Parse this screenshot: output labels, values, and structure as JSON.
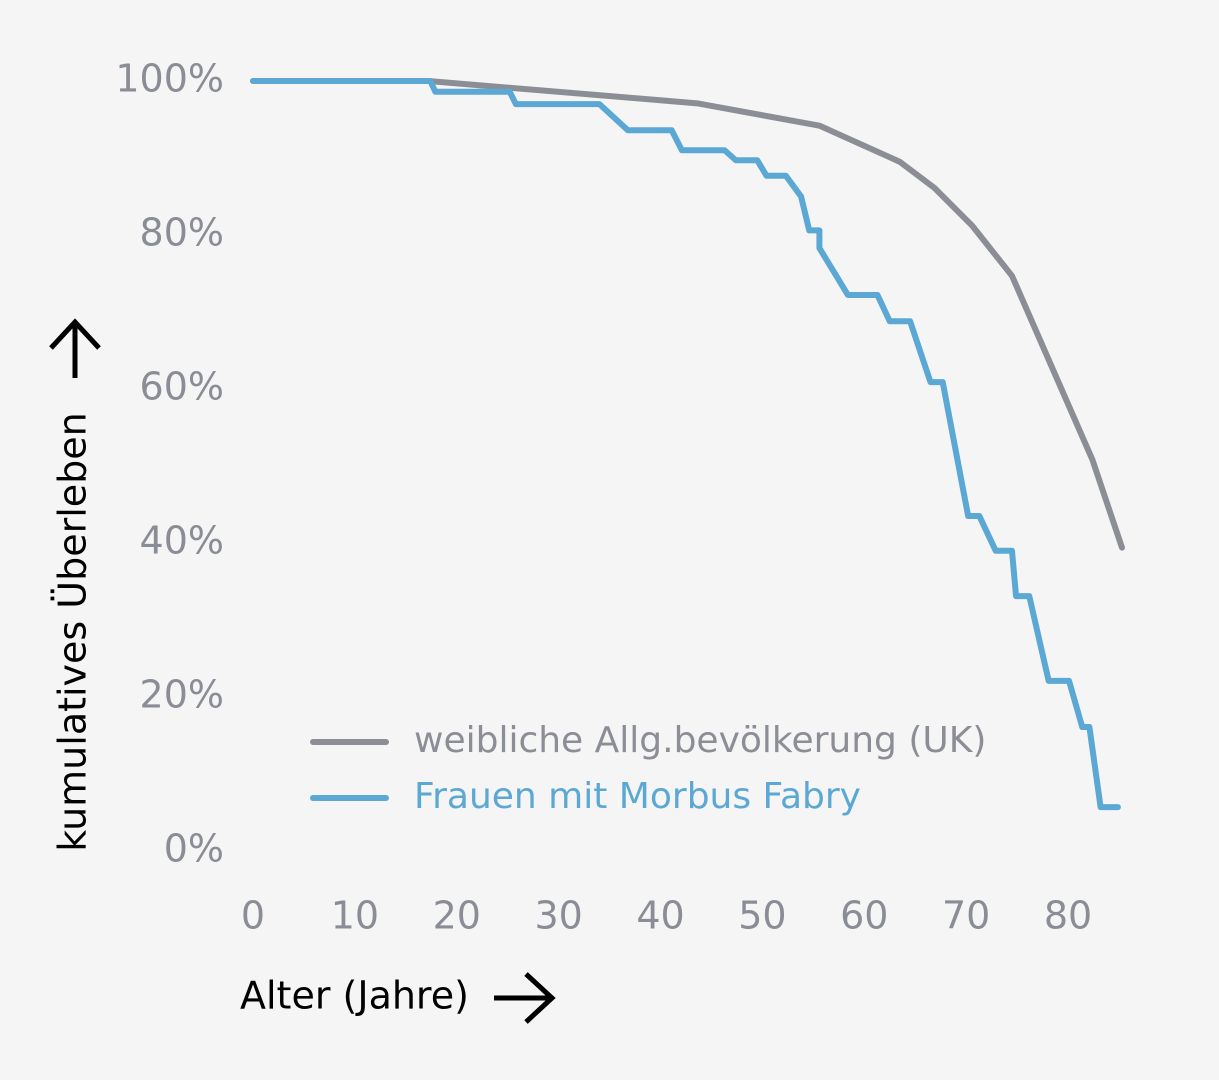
{
  "chart_data": {
    "type": "line",
    "x_label": "Alter (Jahre)",
    "y_label": "kumulatives Überleben",
    "xlim": [
      0,
      80
    ],
    "xticks": [
      0,
      10,
      20,
      30,
      40,
      50,
      60,
      70,
      80
    ],
    "ylim": [
      0,
      100
    ],
    "yticks": [
      {
        "value": 0,
        "label": "0%"
      },
      {
        "value": 20,
        "label": "20%"
      },
      {
        "value": 40,
        "label": "40%"
      },
      {
        "value": 60,
        "label": "60%"
      },
      {
        "value": 80,
        "label": "80%"
      },
      {
        "value": 100,
        "label": "100%"
      }
    ],
    "legend": "lower left",
    "series": [
      {
        "name": "weibliche Allg.bevölkerung (UK)",
        "color": "#8c8e96",
        "x": [
          0,
          17.2,
          43.6,
          55.6,
          63.5,
          66.9,
          70.6,
          74.5,
          82.4,
          85.3
        ],
        "values": [
          100,
          100,
          97.1,
          94.2,
          89.5,
          86.1,
          81.2,
          74.7,
          50.8,
          39.4
        ]
      },
      {
        "name": "Frauen mit Morbus Fabry",
        "color": "#5ba8d4",
        "x": [
          0,
          17.4,
          17.9,
          25.2,
          25.8,
          34.0,
          36.8,
          41.1,
          42.1,
          46.3,
          47.4,
          49.5,
          50.4,
          52.3,
          53.8,
          54.6,
          55.6,
          55.6,
          58.4,
          61.3,
          62.5,
          64.5,
          66.5,
          67.7,
          70.2,
          71.3,
          72.9,
          74.5,
          74.9,
          76.2,
          78.1,
          80.1,
          81.4,
          82.1,
          83.2,
          84.9
        ],
        "values": [
          100,
          100,
          98.6,
          98.6,
          97.0,
          97.0,
          93.6,
          93.6,
          91.0,
          91.0,
          89.7,
          89.7,
          87.7,
          87.7,
          85.0,
          80.6,
          80.6,
          78.3,
          72.2,
          72.2,
          68.8,
          68.8,
          60.9,
          60.9,
          43.5,
          43.5,
          39.0,
          39.0,
          33.1,
          33.1,
          22.1,
          22.1,
          16.1,
          16.1,
          5.7,
          5.7
        ]
      }
    ]
  }
}
